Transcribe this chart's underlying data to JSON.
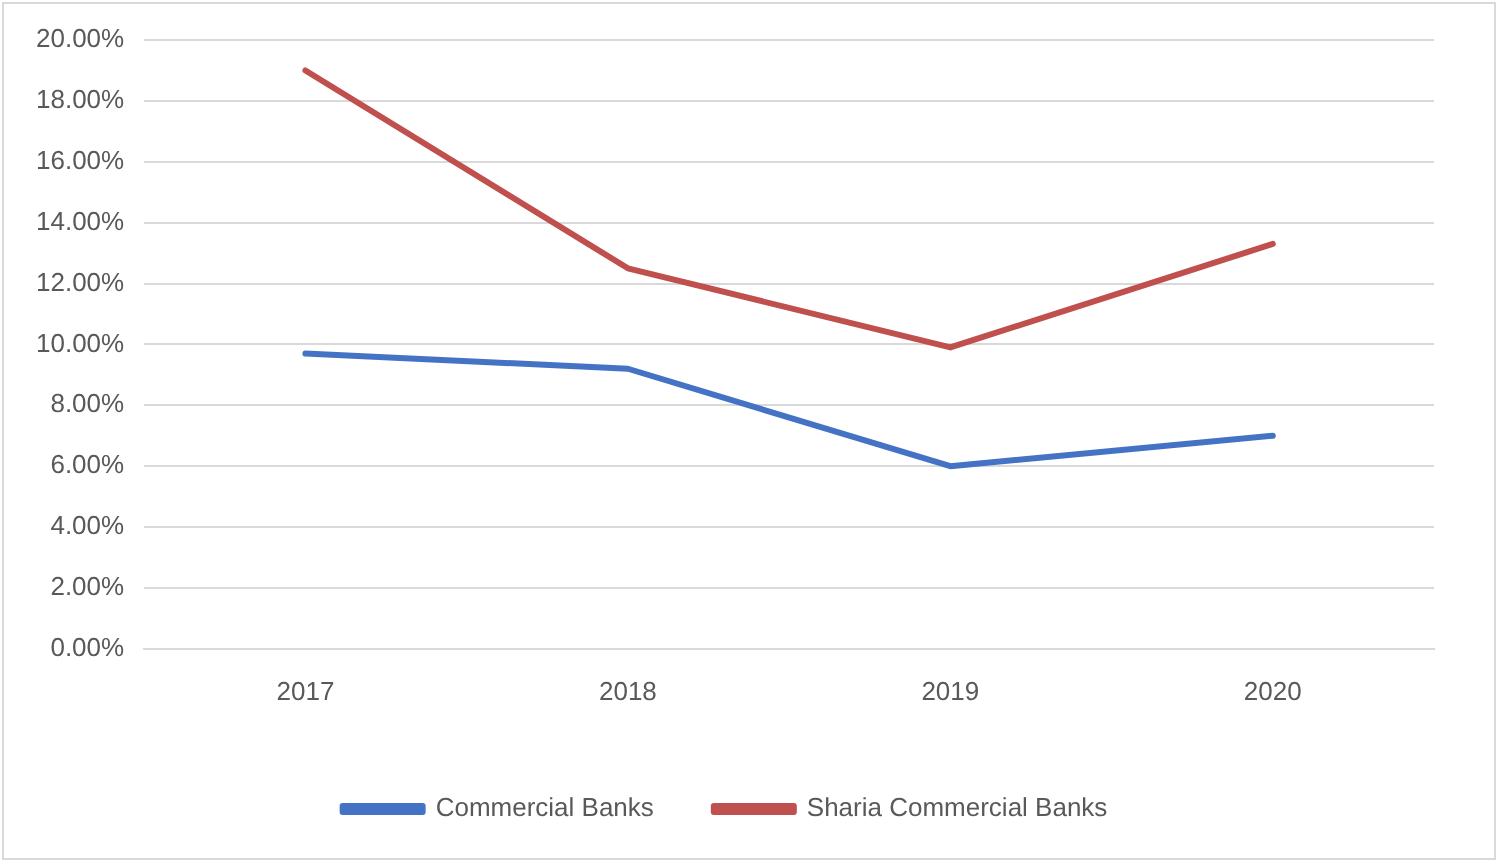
{
  "chart_data": {
    "type": "line",
    "categories": [
      "2017",
      "2018",
      "2019",
      "2020"
    ],
    "series": [
      {
        "name": "Commercial Banks",
        "color": "#4472c4",
        "values": [
          9.7,
          9.2,
          6.0,
          7.0
        ]
      },
      {
        "name": "Sharia Commercial Banks",
        "color": "#c0504d",
        "values": [
          19.0,
          12.5,
          9.9,
          13.3
        ]
      }
    ],
    "ylim": [
      0,
      20
    ],
    "yticks": [
      {
        "value": 0,
        "label": "0.00%"
      },
      {
        "value": 2,
        "label": "2.00%"
      },
      {
        "value": 4,
        "label": "4.00%"
      },
      {
        "value": 6,
        "label": "6.00%"
      },
      {
        "value": 8,
        "label": "8.00%"
      },
      {
        "value": 10,
        "label": "10.00%"
      },
      {
        "value": 12,
        "label": "12.00%"
      },
      {
        "value": 14,
        "label": "14.00%"
      },
      {
        "value": 16,
        "label": "16.00%"
      },
      {
        "value": 18,
        "label": "18.00%"
      },
      {
        "value": 20,
        "label": "20.00%"
      }
    ],
    "grid": "y",
    "legend": "bottom",
    "marker": "none",
    "line_style": "solid"
  }
}
